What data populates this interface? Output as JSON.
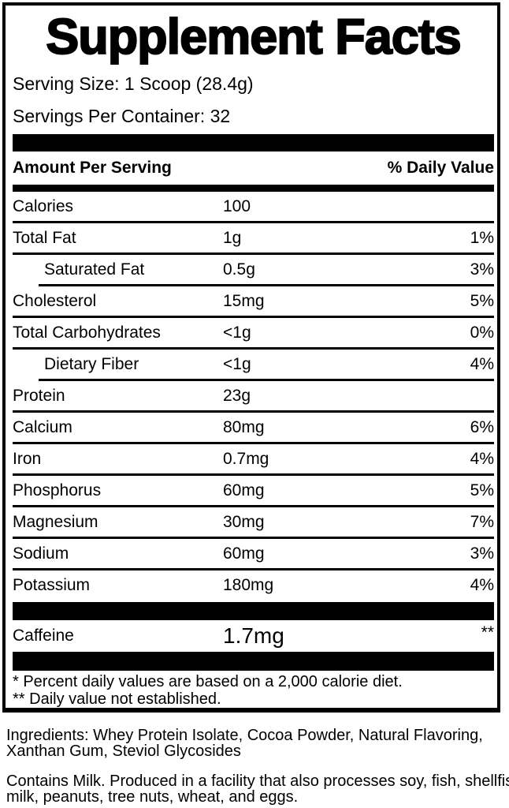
{
  "colors": {
    "ink": "#000000",
    "paper": "#ffffff"
  },
  "header": {
    "title": "Supplement Facts",
    "serving_size": "Serving Size: 1 Scoop (28.4g)",
    "servings_per_container": "Servings Per Container: 32"
  },
  "table": {
    "columns": {
      "left": "Amount Per Serving",
      "right": "% Daily Value"
    },
    "rows": [
      {
        "label": "Calories",
        "amount": "100",
        "pct": ""
      },
      {
        "label": "Total Fat",
        "amount": "1g",
        "pct": "1%"
      },
      {
        "label": "Saturated Fat",
        "amount": "0.5g",
        "pct": "3%"
      },
      {
        "label": "Cholesterol",
        "amount": "15mg",
        "pct": "5%"
      },
      {
        "label": "Total Carbohydrates",
        "amount": "<1g",
        "pct": "0%"
      },
      {
        "label": "Dietary Fiber",
        "amount": "<1g",
        "pct": "4%"
      },
      {
        "label": "Protein",
        "amount": "23g",
        "pct": ""
      },
      {
        "label": "Calcium",
        "amount": "80mg",
        "pct": "6%"
      },
      {
        "label": "Iron",
        "amount": "0.7mg",
        "pct": "4%"
      },
      {
        "label": "Phosphorus",
        "amount": "60mg",
        "pct": "5%"
      },
      {
        "label": "Magnesium",
        "amount": "30mg",
        "pct": "7%"
      },
      {
        "label": "Sodium",
        "amount": "60mg",
        "pct": "3%"
      },
      {
        "label": "Potassium",
        "amount": "180mg",
        "pct": "4%"
      }
    ],
    "caffeine": {
      "label": "Caffeine",
      "amount": "1.7mg",
      "pct": "**"
    }
  },
  "footnotes": {
    "line1": "* Percent daily values are based on a 2,000 calorie diet.",
    "line2": "** Daily value not established."
  },
  "ingredients": {
    "line1": "Ingredients: Whey Protein Isolate, Cocoa Powder, Natural Flavoring,",
    "line2": "Xanthan Gum, Steviol Glycosides"
  },
  "allergen": {
    "line1": "Contains Milk. Produced in a facility that also processes soy, fish, shellfish,",
    "line2": "milk, peanuts, tree nuts, wheat, and eggs."
  }
}
